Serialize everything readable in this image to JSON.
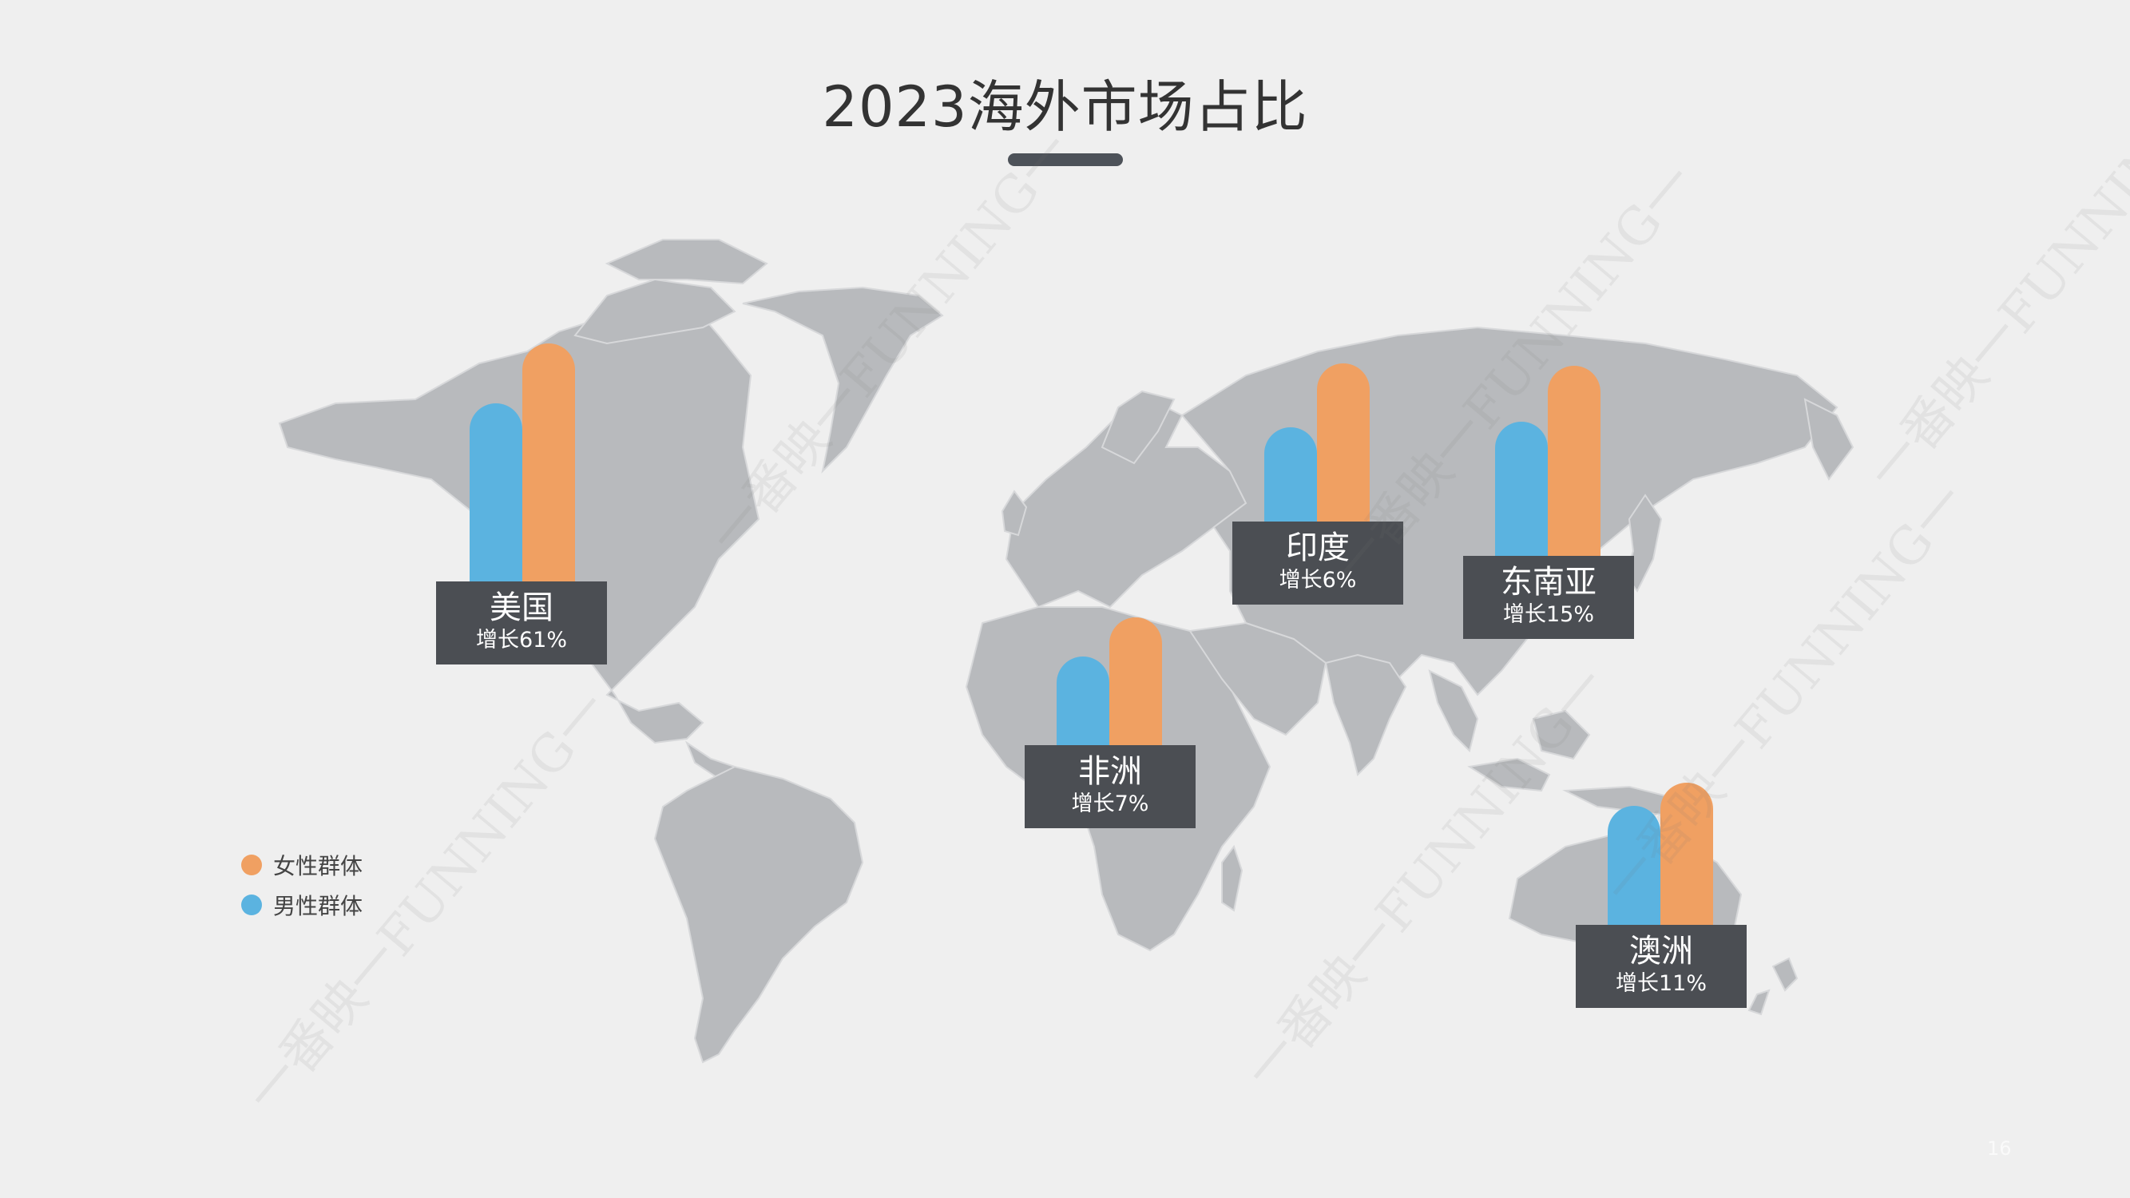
{
  "title": "2023海外市场占比",
  "colors": {
    "male": "#5bb3e0",
    "female": "#f0a062",
    "label_bg": "#4b4e53",
    "map": "#b8babd"
  },
  "markets": [
    {
      "name": "美国",
      "growth": "增长61%",
      "male_level": 0.75,
      "female_level": 1.0
    },
    {
      "name": "印度",
      "growth": "增长6%",
      "male_level": 0.6,
      "female_level": 1.0
    },
    {
      "name": "东南亚",
      "growth": "增长15%",
      "male_level": 0.71,
      "female_level": 1.0
    },
    {
      "name": "非洲",
      "growth": "增长7%",
      "male_level": 0.7,
      "female_level": 1.0
    },
    {
      "name": "澳洲",
      "growth": "增长11%",
      "male_level": 0.84,
      "female_level": 1.0
    }
  ],
  "legend": [
    {
      "label": "女性群体",
      "color": "#f0a062"
    },
    {
      "label": "男性群体",
      "color": "#5bb3e0"
    }
  ],
  "watermark": "一番映一FUNNING一",
  "page_number": "16"
}
